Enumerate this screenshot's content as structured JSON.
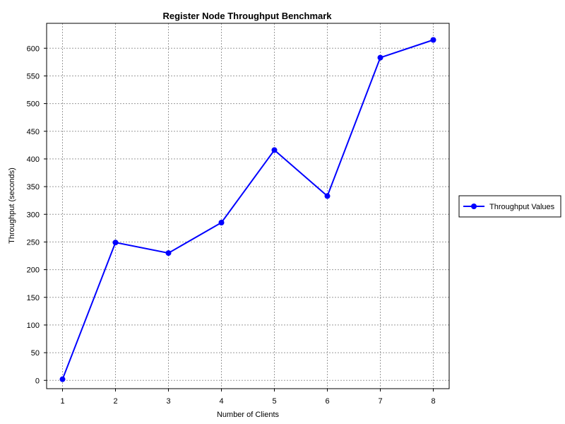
{
  "chart_data": {
    "type": "line",
    "title": "Register Node Throughput Benchmark",
    "xlabel": "Number of Clients",
    "ylabel": "Throughput (seconds)",
    "x": [
      1,
      2,
      3,
      4,
      5,
      6,
      7,
      8
    ],
    "xticks": [
      "1",
      "2",
      "3",
      "4",
      "5",
      "6",
      "7",
      "8"
    ],
    "xlim": [
      0.7,
      8.3
    ],
    "ylim": [
      -15,
      645
    ],
    "yticks": [
      0,
      50,
      100,
      150,
      200,
      250,
      300,
      350,
      400,
      450,
      500,
      550,
      600
    ],
    "grid": true,
    "legend_position": "right",
    "series": [
      {
        "name": "Throughput Values",
        "color": "#0000ff",
        "values": [
          2,
          249,
          230,
          285,
          416,
          333,
          583,
          615
        ]
      }
    ]
  }
}
